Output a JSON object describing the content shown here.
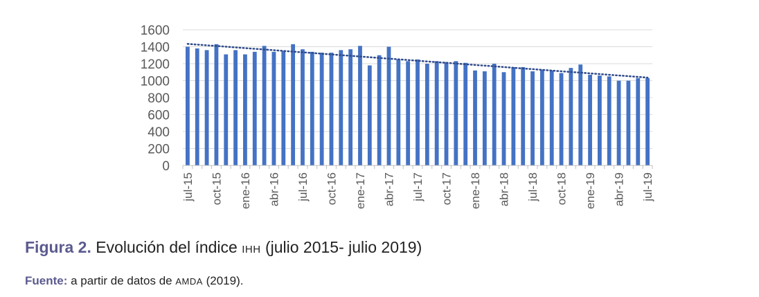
{
  "chart_data": {
    "type": "bar",
    "series": [
      {
        "values": [
          1400,
          1380,
          1360,
          1430,
          1310,
          1360,
          1310,
          1340,
          1410,
          1340,
          1350,
          1430,
          1370,
          1340,
          1330,
          1330,
          1360,
          1370,
          1410,
          1180,
          1300,
          1400,
          1250,
          1230,
          1250,
          1200,
          1230,
          1220,
          1230,
          1210,
          1120,
          1110,
          1200,
          1100,
          1160,
          1160,
          1110,
          1130,
          1120,
          1090,
          1150,
          1190,
          1070,
          1060,
          1050,
          1000,
          1000,
          1030,
          1030
        ],
        "color": "#4472c4"
      }
    ],
    "trendline": {
      "type": "linear",
      "style": "dotted",
      "color": "#2e4a8a"
    },
    "x_tick_labels": [
      "jul-15",
      "oct-15",
      "ene-16",
      "abr-16",
      "jul-16",
      "oct-16",
      "ene-17",
      "abr-17",
      "jul-17",
      "oct-17",
      "ene-18",
      "abr-18",
      "jul-18",
      "oct-18",
      "ene-19",
      "abr-19",
      "jul-19"
    ],
    "x_tick_every": 3,
    "ylim": [
      0,
      1600
    ],
    "yticks": [
      0,
      200,
      400,
      600,
      800,
      1000,
      1200,
      1400,
      1600
    ],
    "grid": true,
    "legend": "none"
  },
  "caption": {
    "label": "Figura 2.",
    "text_before": " Evolución del índice ",
    "smallcaps": "IHH",
    "text_after": " (julio 2015- julio 2019)"
  },
  "source": {
    "label": "Fuente:",
    "text_before": " a partir de datos de ",
    "smallcaps": "AMDA",
    "text_after": " (2019)."
  }
}
